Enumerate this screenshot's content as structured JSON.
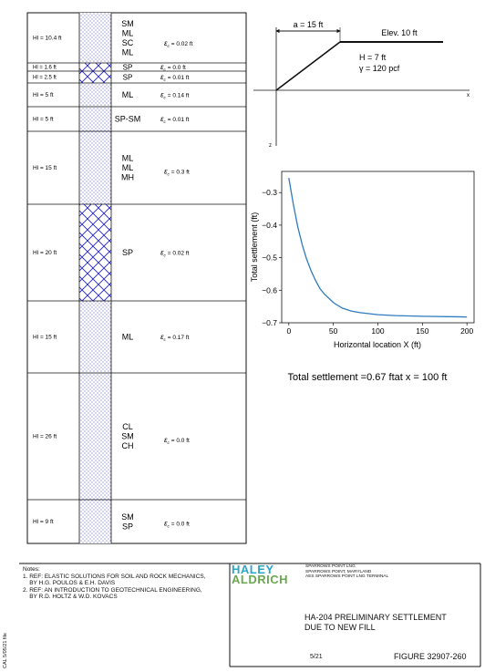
{
  "profile": {
    "layers": [
      {
        "hl": "Hl = 10.4 ft",
        "soil": [
          "SM",
          "ML",
          "SC",
          "ML"
        ],
        "ec": "= 0.02 ft",
        "hatch": "dots"
      },
      {
        "hl": "Hl = 1.6 ft",
        "soil": [
          "SP"
        ],
        "ec": "= 0.0 ft",
        "hatch": "cross"
      },
      {
        "hl": "Hl = 2.5 ft",
        "soil": [
          "SP"
        ],
        "ec": "= 0.01 ft",
        "hatch": "cross"
      },
      {
        "hl": "Hl = 5 ft",
        "soil": [
          "ML"
        ],
        "ec": "= 0.14 ft",
        "hatch": "dots"
      },
      {
        "hl": "Hl = 5 ft",
        "soil": [
          "SP-SM"
        ],
        "ec": "= 0.01 ft",
        "hatch": "dots"
      },
      {
        "hl": "Hl = 15 ft",
        "soil": [
          "ML",
          "ML",
          "MH"
        ],
        "ec": "= 0.3 ft",
        "hatch": "dots"
      },
      {
        "hl": "Hl = 20 ft",
        "soil": [
          "SP"
        ],
        "ec": "= 0.02 ft",
        "hatch": "cross"
      },
      {
        "hl": "Hl = 15 ft",
        "soil": [
          "ML"
        ],
        "ec": "= 0.17 ft",
        "hatch": "dots"
      },
      {
        "hl": "Hl = 26 ft",
        "soil": [
          "CL",
          "SM",
          "CH"
        ],
        "ec": "= 0.0 ft",
        "hatch": "dots"
      },
      {
        "hl": "Hl = 9 ft",
        "soil": [
          "SM",
          "SP"
        ],
        "ec": "= 0.0 ft",
        "hatch": "dots"
      }
    ],
    "ec_symbol": "ε",
    "ec_sub": "c"
  },
  "fill_diagram": {
    "a_label": "a = 15 ft",
    "elev_label": "Elev. 10 ft",
    "h_label": "H = 7 ft",
    "gamma_label": "γ = 120 pcf",
    "x_axis": "x",
    "z_axis": "z"
  },
  "chart_data": {
    "type": "line",
    "xlabel": "Horizontal location X (ft)",
    "ylabel": "Total settlement (ft)",
    "xlim": [
      -8,
      208
    ],
    "ylim": [
      -0.7,
      -0.235
    ],
    "xticks": [
      0,
      50,
      100,
      150,
      200
    ],
    "yticks": [
      -0.3,
      -0.4,
      -0.5,
      -0.6,
      -0.7
    ],
    "series": [
      {
        "color": "#2e7bbf",
        "x": [
          0,
          5,
          10,
          15,
          20,
          25,
          30,
          35,
          40,
          50,
          60,
          70,
          80,
          100,
          120,
          150,
          200
        ],
        "y": [
          -0.255,
          -0.335,
          -0.405,
          -0.46,
          -0.505,
          -0.54,
          -0.57,
          -0.595,
          -0.612,
          -0.638,
          -0.655,
          -0.664,
          -0.669,
          -0.675,
          -0.678,
          -0.68,
          -0.682
        ]
      }
    ]
  },
  "result_text": "Total settlement =0.67 ftat x = 100 ft",
  "notes": {
    "title": "Notes:",
    "lines": [
      "1. REF: ELASTIC SOLUTIONS FOR SOIL AND ROCK MECHANICS,",
      "    BY H.G. POULOS & E.H. DAVIS",
      "2. REF: AN INTRODUCTION TO GEOTECHNICAL ENGINEERING,",
      "    BY R.D. HOLTZ & W.D. KOVACS"
    ]
  },
  "title_block": {
    "logo_top": "HALEY",
    "logo_bottom": "ALDRICH",
    "project_lines": [
      "SPARROWS POINT LNG",
      "SPARROWS POINT, MARYLAND",
      "AES SPARROWS POINT LNG TERMINAL"
    ],
    "title_line1": "HA-204 PRELIMINARY SETTLEMENT",
    "title_line2": "DUE TO NEW FILL",
    "date": "5/21",
    "figure": "FIGURE 32907-260",
    "side_stamp": "CAL 5/05/21 file",
    "brand_teal": "#2aa6c8",
    "brand_green": "#6aa84f"
  }
}
